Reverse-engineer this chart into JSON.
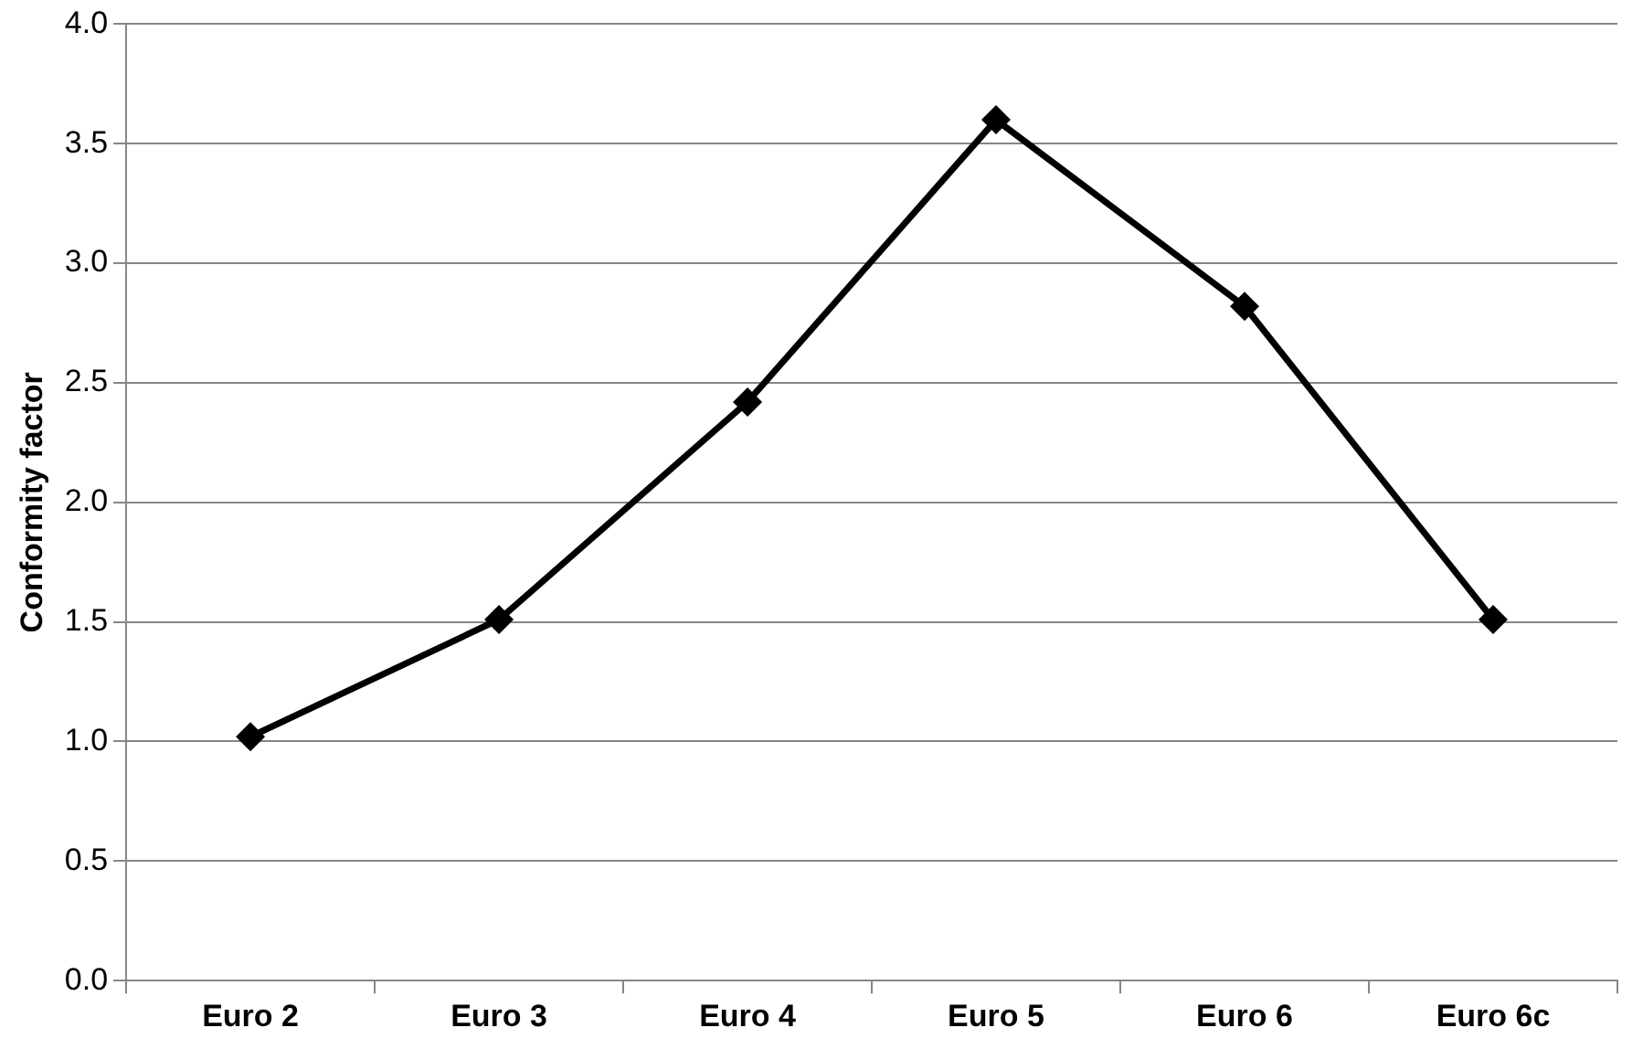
{
  "chart_data": {
    "type": "line",
    "ylabel": "Conformity factor",
    "categories": [
      "Euro 2",
      "Euro 3",
      "Euro 4",
      "Euro 5",
      "Euro 6",
      "Euro 6c"
    ],
    "series": [
      {
        "color": "#000000",
        "values": [
          1.02,
          1.51,
          2.42,
          3.6,
          2.82,
          1.51
        ]
      }
    ],
    "ylim": [
      0,
      4
    ],
    "yticks": [
      {
        "value": 0,
        "label": "0.0"
      },
      {
        "value": 0.5,
        "label": "0.5"
      },
      {
        "value": 1,
        "label": "1.0"
      },
      {
        "value": 1.5,
        "label": "1.5"
      },
      {
        "value": 2,
        "label": "2.0"
      },
      {
        "value": 2.5,
        "label": "2.5"
      },
      {
        "value": 3,
        "label": "3.0"
      },
      {
        "value": 3.5,
        "label": "3.5"
      },
      {
        "value": 4,
        "label": "4.0"
      }
    ],
    "grid": "y",
    "legend": false,
    "marker": "diamond",
    "line_style": "solid"
  }
}
